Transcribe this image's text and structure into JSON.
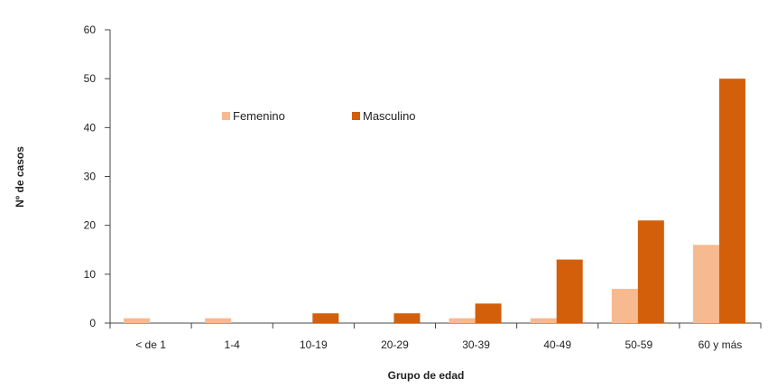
{
  "chart_data": {
    "type": "bar",
    "title": "",
    "xlabel": "Grupo de edad",
    "ylabel": "Nº de casos",
    "ylim": [
      0,
      60
    ],
    "yticks": [
      "0",
      "10",
      "20",
      "30",
      "40",
      "50",
      "60"
    ],
    "grid": false,
    "legend_position": "top-left",
    "categories": [
      "< de 1",
      "1-4",
      "10-19",
      "20-29",
      "30-39",
      "40-49",
      "50-59",
      "60 y más"
    ],
    "series": [
      {
        "name": "Femenino",
        "color": "#f7b98f",
        "values": [
          1,
          1,
          0,
          0,
          1,
          1,
          7,
          16
        ]
      },
      {
        "name": "Masculino",
        "color": "#d35f0b",
        "values": [
          0,
          0,
          2,
          2,
          4,
          13,
          21,
          50
        ]
      }
    ]
  }
}
